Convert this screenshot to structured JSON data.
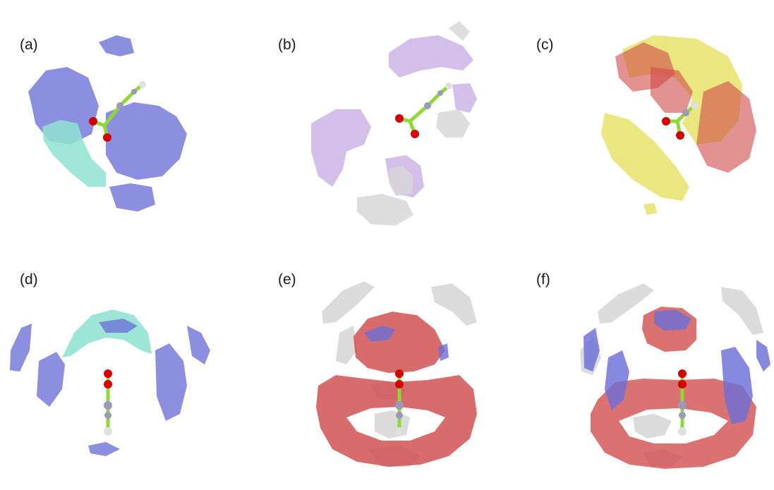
{
  "panels": [
    {
      "label": "(a)"
    },
    {
      "label": "(b)"
    },
    {
      "label": "(c)"
    },
    {
      "label": "(d)"
    },
    {
      "label": "(e)"
    },
    {
      "label": "(f)"
    }
  ],
  "colors": {
    "blue_isosurface": "#6b6fd6",
    "cyan_isosurface": "#8fe3d2",
    "lilac_isosurface": "#cdb3e6",
    "grey_isosurface": "#d7d7d7",
    "red_isosurface": "#d04a4a",
    "yellow_isosurface": "#e6e36a",
    "oxygen_atom": "#d40000",
    "carbon_atom": "#8ed83a",
    "nitrogen_atom": "#9a9ab8"
  }
}
